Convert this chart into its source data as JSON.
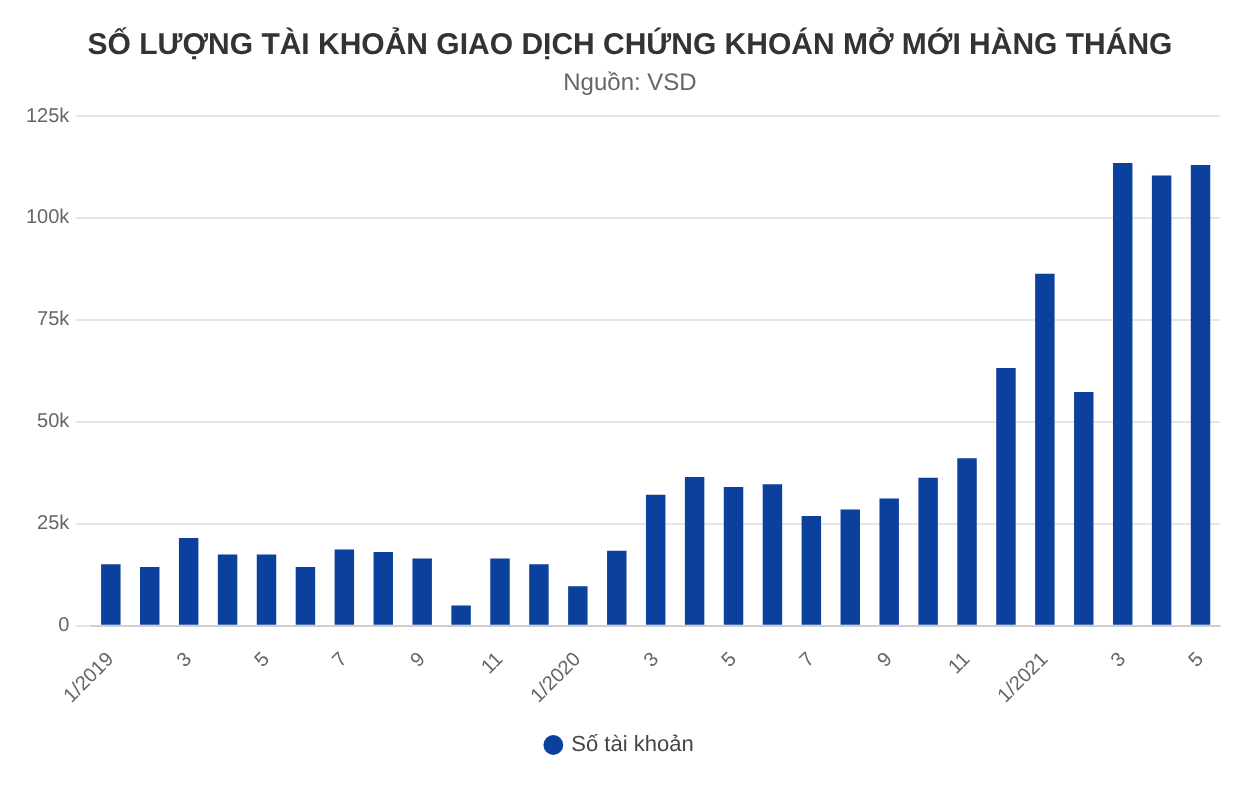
{
  "chart_data": {
    "type": "bar",
    "title": "SỐ LƯỢNG TÀI KHOẢN GIAO DỊCH CHỨNG KHOÁN MỞ MỚI HÀNG THÁNG",
    "subtitle": "Nguồn: VSD",
    "categories": [
      "1/2019",
      null,
      "3",
      null,
      "5",
      null,
      "7",
      null,
      "9",
      null,
      "11",
      null,
      "1/2020",
      null,
      "3",
      null,
      "5",
      null,
      "7",
      null,
      "9",
      null,
      "11",
      null,
      "1/2021",
      null,
      "3",
      null,
      "5"
    ],
    "series": [
      {
        "name": "Số tài khoản",
        "color": "#0b409c",
        "values": [
          15.1,
          14.4,
          21.5,
          17.5,
          17.5,
          14.4,
          18.7,
          18.1,
          16.5,
          5.0,
          16.5,
          15.1,
          9.7,
          18.4,
          32.1,
          36.5,
          34.0,
          34.7,
          26.9,
          28.5,
          31.2,
          36.3,
          41.1,
          63.2,
          86.3,
          57.3,
          113.5,
          110.4,
          113.0
        ]
      }
    ],
    "ylim": [
      0,
      125
    ],
    "yticks": [
      {
        "value": 0,
        "label": "0"
      },
      {
        "value": 25,
        "label": "25k"
      },
      {
        "value": 50,
        "label": "50k"
      },
      {
        "value": 75,
        "label": "75k"
      },
      {
        "value": 100,
        "label": "100k"
      },
      {
        "value": 125,
        "label": "125k"
      }
    ],
    "grid": "y",
    "legend": "bottom"
  }
}
